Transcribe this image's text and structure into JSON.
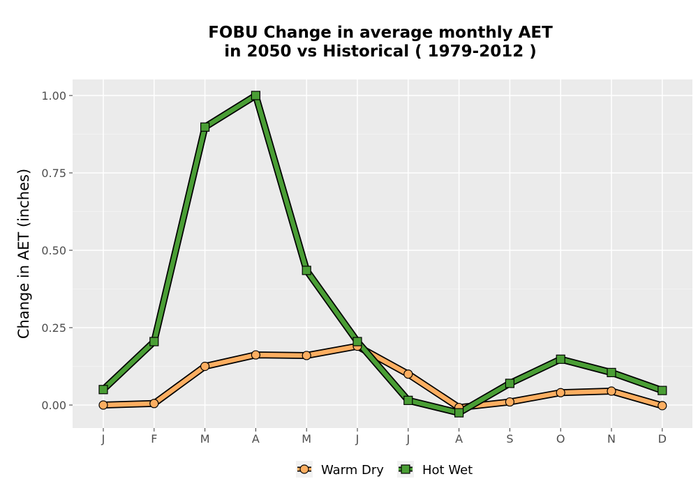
{
  "chart_data": {
    "type": "line",
    "title_line1": "FOBU  Change in average monthly AET",
    "title_line2": "in 2050 vs Historical ( 1979-2012 )",
    "xlabel": "",
    "ylabel": "Change in AET (inches)",
    "categories": [
      "J",
      "F",
      "M",
      "A",
      "M",
      "J",
      "J",
      "A",
      "S",
      "O",
      "N",
      "D"
    ],
    "ylim": [
      -0.075,
      1.05
    ],
    "yticks": [
      0.0,
      0.25,
      0.5,
      0.75,
      1.0
    ],
    "ytick_labels": [
      "0.00",
      "0.25",
      "0.50",
      "0.75",
      "1.00"
    ],
    "grid": true,
    "legend_position": "bottom",
    "series": [
      {
        "name": "Warm Dry",
        "marker": "circle",
        "color": "#fdae61",
        "values": [
          0.0,
          0.005,
          0.125,
          0.162,
          0.16,
          0.19,
          0.1,
          -0.008,
          0.01,
          0.04,
          0.045,
          -0.002
        ]
      },
      {
        "name": "Hot Wet",
        "marker": "square",
        "color": "#4a9e35",
        "values": [
          0.05,
          0.205,
          0.898,
          1.0,
          0.435,
          0.205,
          0.015,
          -0.025,
          0.07,
          0.148,
          0.105,
          0.047
        ]
      }
    ]
  }
}
